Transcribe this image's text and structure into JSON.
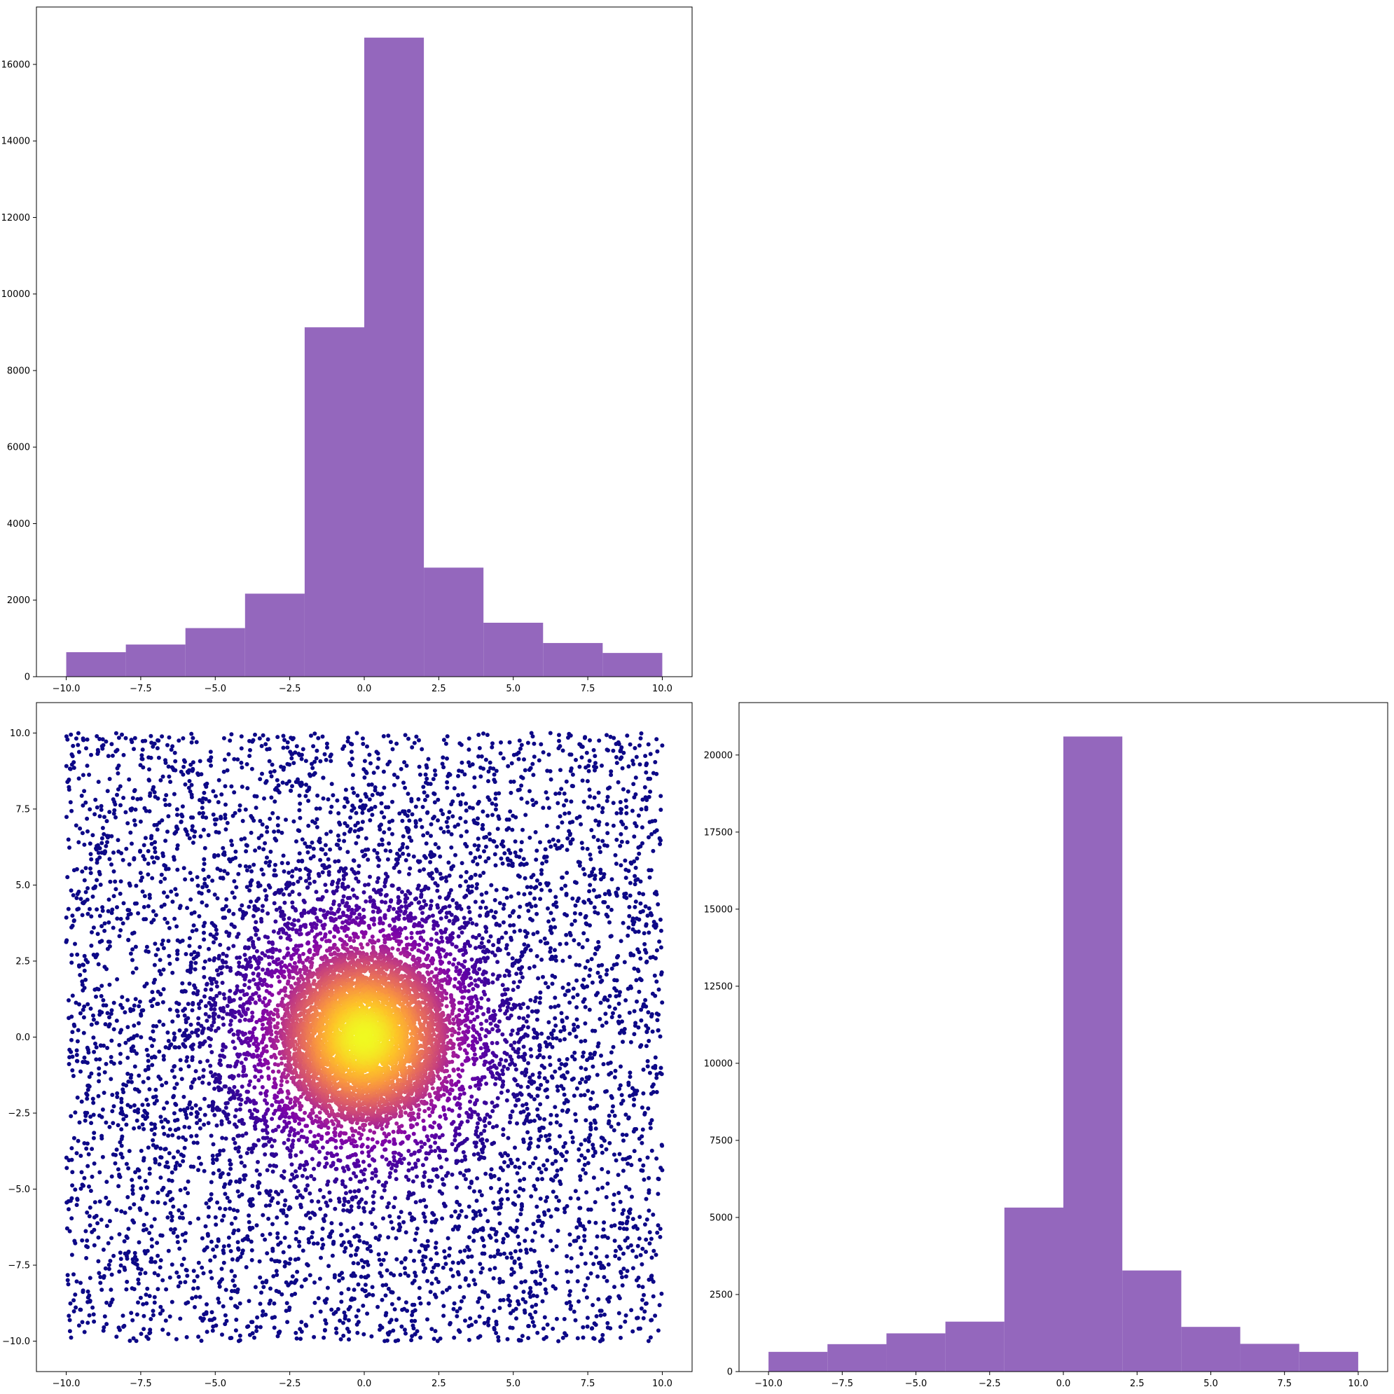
{
  "chart_data": [
    {
      "type": "bar",
      "panel": "top-left",
      "bin_edges": [
        -10,
        -8,
        -6,
        -4,
        -2,
        0,
        2,
        4,
        6,
        8,
        10
      ],
      "values": [
        640,
        840,
        1270,
        2170,
        9130,
        16700,
        2850,
        1410,
        880,
        620
      ],
      "xlim": [
        -11,
        11
      ],
      "ylim": [
        0,
        17500
      ],
      "xticks": [
        -10.0,
        -7.5,
        -5.0,
        -2.5,
        0.0,
        2.5,
        5.0,
        7.5,
        10.0
      ],
      "xtick_labels": [
        "−10.0",
        "−7.5",
        "−5.0",
        "−2.5",
        "0.0",
        "2.5",
        "5.0",
        "7.5",
        "10.0"
      ],
      "yticks": [
        0,
        2000,
        4000,
        6000,
        8000,
        10000,
        12000,
        14000,
        16000
      ],
      "ytick_labels": [
        "0",
        "2000",
        "4000",
        "6000",
        "8000",
        "10000",
        "12000",
        "14000",
        "16000"
      ],
      "color": "#9467bd",
      "grid": false
    },
    {
      "type": "scatter",
      "panel": "bottom-left",
      "x_range": [
        -10,
        10
      ],
      "y_range": [
        -10,
        10
      ],
      "point_count": 10000,
      "center": [
        0,
        0
      ],
      "color_scale": "plasma",
      "color_low": "#1b0c79",
      "color_high": "#f0f921",
      "xlim": [
        -11,
        11
      ],
      "ylim": [
        -11,
        11
      ],
      "xticks": [
        -10.0,
        -7.5,
        -5.0,
        -2.5,
        0.0,
        2.5,
        5.0,
        7.5,
        10.0
      ],
      "xtick_labels": [
        "−10.0",
        "−7.5",
        "−5.0",
        "−2.5",
        "0.0",
        "2.5",
        "5.0",
        "7.5",
        "10.0"
      ],
      "yticks": [
        -10.0,
        -7.5,
        -5.0,
        -2.5,
        0.0,
        2.5,
        5.0,
        7.5,
        10.0
      ],
      "ytick_labels": [
        "−10.0",
        "−7.5",
        "−5.0",
        "−2.5",
        "0.0",
        "2.5",
        "5.0",
        "7.5",
        "10.0"
      ],
      "grid": false
    },
    {
      "type": "bar",
      "panel": "bottom-right",
      "bin_edges": [
        -10,
        -8,
        -6,
        -4,
        -2,
        0,
        2,
        4,
        6,
        8,
        10
      ],
      "values": [
        640,
        890,
        1240,
        1620,
        5320,
        20600,
        3280,
        1450,
        900,
        640
      ],
      "xlim": [
        -11,
        11
      ],
      "ylim": [
        0,
        21700
      ],
      "xticks": [
        -10.0,
        -7.5,
        -5.0,
        -2.5,
        0.0,
        2.5,
        5.0,
        7.5,
        10.0
      ],
      "xtick_labels": [
        "−10.0",
        "−7.5",
        "−5.0",
        "−2.5",
        "0.0",
        "2.5",
        "5.0",
        "7.5",
        "10.0"
      ],
      "yticks": [
        0,
        2500,
        5000,
        7500,
        10000,
        12500,
        15000,
        17500,
        20000
      ],
      "ytick_labels": [
        "0",
        "2500",
        "5000",
        "7500",
        "10000",
        "12500",
        "15000",
        "17500",
        "20000"
      ],
      "color": "#9467bd",
      "grid": false
    }
  ]
}
